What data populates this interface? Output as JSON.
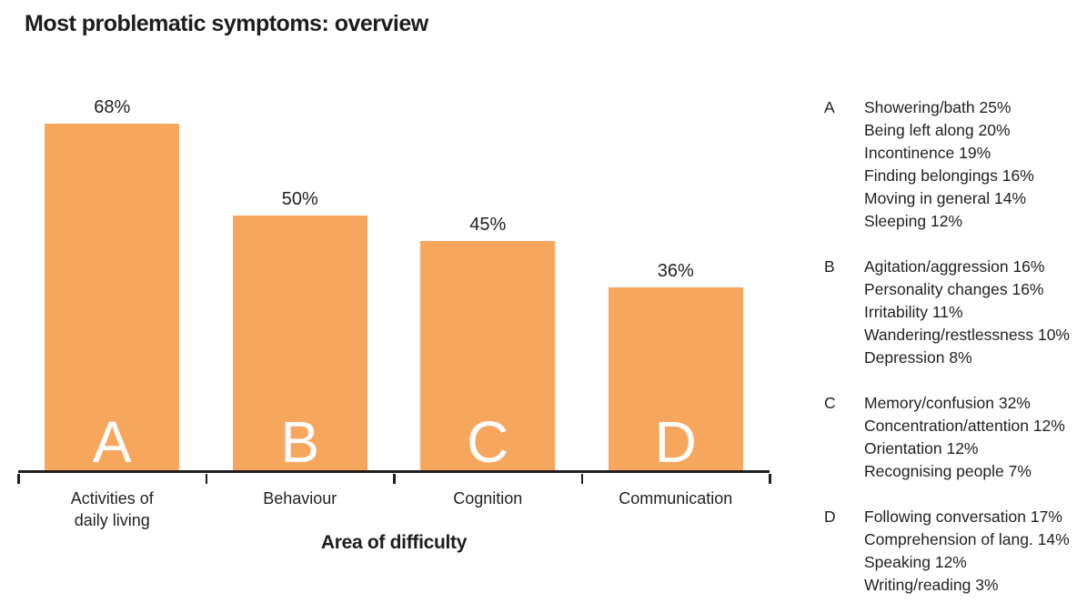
{
  "title": "Most problematic symptoms: overview",
  "chart_data": {
    "type": "bar",
    "categories": [
      "Activities of\ndaily living",
      "Behaviour",
      "Cognition",
      "Communication"
    ],
    "bar_letters": [
      "A",
      "B",
      "C",
      "D"
    ],
    "values": [
      68,
      50,
      45,
      36
    ],
    "value_labels": [
      "68%",
      "50%",
      "45%",
      "36%"
    ],
    "xlabel": "Area of difficulty",
    "ylabel": "",
    "ylim": [
      0,
      100
    ],
    "grid": false,
    "legend_position": "right"
  },
  "legend": {
    "sections": [
      {
        "letter": "A",
        "items": [
          "Showering/bath 25%",
          "Being left along 20%",
          "Incontinence 19%",
          "Finding belongings 16%",
          "Moving in general 14%",
          "Sleeping 12%"
        ]
      },
      {
        "letter": "B",
        "items": [
          "Agitation/aggression 16%",
          "Personality changes 16%",
          "Irritability 11%",
          "Wandering/restlessness 10%",
          "Depression 8%"
        ]
      },
      {
        "letter": "C",
        "items": [
          "Memory/confusion 32%",
          "Concentration/attention 12%",
          "Orientation 12%",
          "Recognising people 7%"
        ]
      },
      {
        "letter": "D",
        "items": [
          "Following conversation 17%",
          "Comprehension of lang. 14%",
          "Speaking 12%",
          "Writing/reading 3%"
        ]
      }
    ]
  },
  "colors": {
    "bar": "#f7a65e",
    "bar_letter": "#ffffff",
    "text": "#231f20",
    "axis": "#231f20",
    "background": "#ffffff"
  }
}
